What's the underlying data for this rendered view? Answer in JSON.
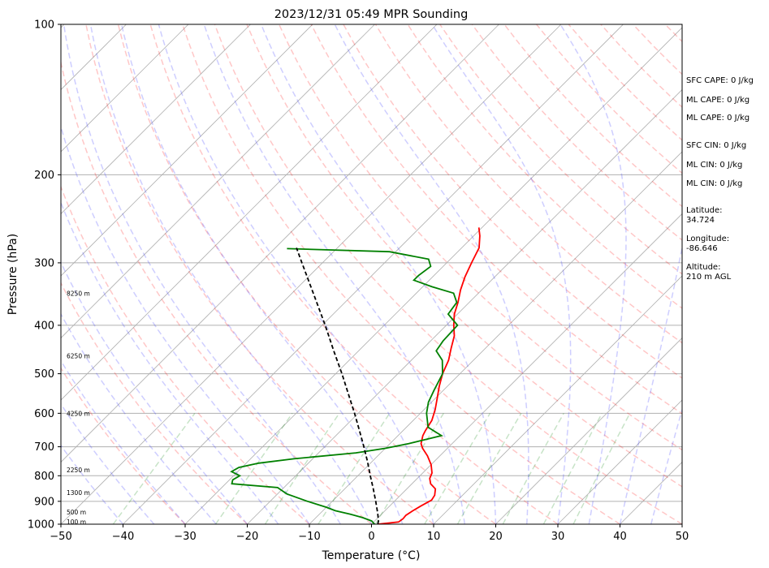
{
  "chart_data": {
    "type": "line",
    "title": "2023/12/31 05:49 MPR Sounding",
    "xlabel": "Temperature (°C)",
    "ylabel": "Pressure (hPa)",
    "xlim": [
      -50,
      50
    ],
    "ylim": [
      1000,
      100
    ],
    "y_scale": "log",
    "grid": true,
    "x_ticks": [
      -50,
      -40,
      -30,
      -20,
      -10,
      0,
      10,
      20,
      30,
      40,
      50
    ],
    "y_ticks": [
      100,
      200,
      300,
      400,
      500,
      600,
      700,
      800,
      900,
      1000
    ],
    "series": [
      {
        "role": "temperature",
        "color": "#ff0000",
        "points": [
          [
            1000,
            1.0
          ],
          [
            990,
            4.0
          ],
          [
            975,
            4.2
          ],
          [
            960,
            4.1
          ],
          [
            940,
            4.5
          ],
          [
            920,
            5.0
          ],
          [
            895,
            5.8
          ],
          [
            875,
            5.5
          ],
          [
            850,
            4.6
          ],
          [
            830,
            3.0
          ],
          [
            810,
            2.0
          ],
          [
            790,
            1.5
          ],
          [
            760,
            0.0
          ],
          [
            730,
            -2.0
          ],
          [
            705,
            -4.0
          ],
          [
            690,
            -5.0
          ],
          [
            665,
            -6.0
          ],
          [
            650,
            -6.4
          ],
          [
            620,
            -7.0
          ],
          [
            590,
            -8.2
          ],
          [
            560,
            -9.7
          ],
          [
            530,
            -11.3
          ],
          [
            500,
            -12.8
          ],
          [
            470,
            -14.0
          ],
          [
            445,
            -15.5
          ],
          [
            420,
            -17.0
          ],
          [
            400,
            -18.8
          ],
          [
            380,
            -20.5
          ],
          [
            360,
            -21.8
          ],
          [
            340,
            -23.4
          ],
          [
            320,
            -24.8
          ],
          [
            300,
            -26.0
          ],
          [
            280,
            -27.2
          ],
          [
            265,
            -29.0
          ],
          [
            255,
            -30.5
          ]
        ]
      },
      {
        "role": "dewpoint",
        "color": "#008000",
        "points": [
          [
            1000,
            0.5
          ],
          [
            985,
            -0.5
          ],
          [
            970,
            -2.5
          ],
          [
            955,
            -5.0
          ],
          [
            940,
            -8.0
          ],
          [
            925,
            -10.0
          ],
          [
            900,
            -14.0
          ],
          [
            870,
            -18.5
          ],
          [
            845,
            -21.0
          ],
          [
            830,
            -29.0
          ],
          [
            815,
            -29.5
          ],
          [
            800,
            -29.0
          ],
          [
            785,
            -31.0
          ],
          [
            770,
            -30.5
          ],
          [
            755,
            -28.0
          ],
          [
            740,
            -23.0
          ],
          [
            720,
            -14.0
          ],
          [
            705,
            -10.0
          ],
          [
            690,
            -7.0
          ],
          [
            665,
            -3.0
          ],
          [
            640,
            -6.5
          ],
          [
            600,
            -9.0
          ],
          [
            570,
            -10.5
          ],
          [
            540,
            -11.5
          ],
          [
            500,
            -12.8
          ],
          [
            470,
            -15.0
          ],
          [
            450,
            -17.5
          ],
          [
            430,
            -18.0
          ],
          [
            400,
            -18.2
          ],
          [
            380,
            -21.5
          ],
          [
            360,
            -22.0
          ],
          [
            345,
            -24.0
          ],
          [
            335,
            -28.5
          ],
          [
            325,
            -32.5
          ],
          [
            318,
            -32.5
          ],
          [
            305,
            -32.0
          ],
          [
            295,
            -33.5
          ],
          [
            285,
            -41.0
          ],
          [
            281,
            -58.0
          ]
        ]
      },
      {
        "role": "parcel",
        "color": "#000000",
        "points": [
          [
            1000,
            1.0
          ],
          [
            985,
            0.6
          ],
          [
            950,
            -0.8
          ],
          [
            900,
            -3.0
          ],
          [
            850,
            -5.4
          ],
          [
            800,
            -8.0
          ],
          [
            750,
            -10.7
          ],
          [
            700,
            -13.7
          ],
          [
            650,
            -17.0
          ],
          [
            600,
            -20.6
          ],
          [
            550,
            -24.6
          ],
          [
            500,
            -29.0
          ],
          [
            450,
            -34.0
          ],
          [
            400,
            -39.5
          ],
          [
            350,
            -45.9
          ],
          [
            300,
            -53.3
          ],
          [
            280,
            -56.6
          ]
        ]
      }
    ],
    "height_labels": [
      {
        "label": "100 m",
        "p": 989
      },
      {
        "label": "500 m",
        "p": 946
      },
      {
        "label": "1300 m",
        "p": 865
      },
      {
        "label": "2250 m",
        "p": 778
      },
      {
        "label": "4250 m",
        "p": 600
      },
      {
        "label": "6250 m",
        "p": 460
      },
      {
        "label": "8250 m",
        "p": 345
      }
    ]
  },
  "info": {
    "sfc_cape": "SFC CAPE: 0 J/kg",
    "ml_cape_1": "ML CAPE: 0 J/kg",
    "ml_cape_2": "ML CAPE: 0 J/kg",
    "sfc_cin": "SFC CIN: 0 J/kg",
    "ml_cin_1": "ML CIN: 0 J/kg",
    "ml_cin_2": "ML CIN: 0 J/kg",
    "latitude_label": "Latitude:",
    "latitude_value": "34.724",
    "longitude_label": "Longitude:",
    "longitude_value": "-86.646",
    "altitude_label": "Altitude:",
    "altitude_value": "210 m AGL"
  }
}
